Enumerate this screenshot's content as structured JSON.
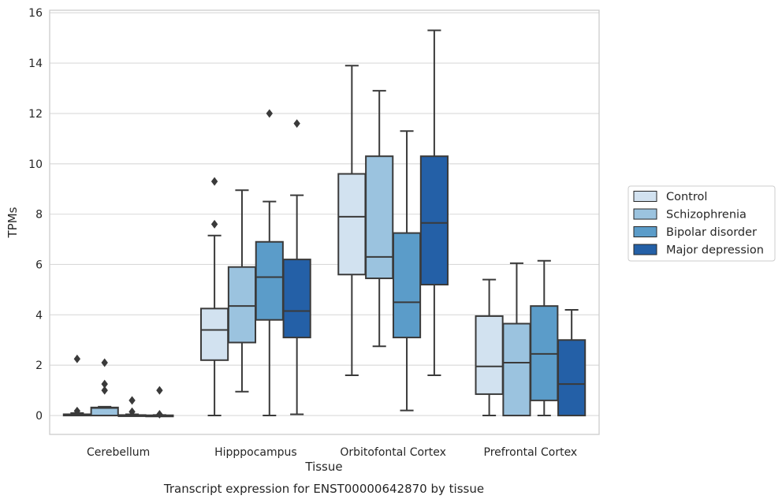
{
  "chart_data": {
    "type": "box",
    "caption": "Transcript expression for ENST00000642870 by tissue",
    "xlabel": "Tissue",
    "ylabel": "TPMs",
    "ylim": [
      -0.75,
      16.1
    ],
    "yticks": [
      0,
      2,
      4,
      6,
      8,
      10,
      12,
      14,
      16
    ],
    "grid": "horizontal",
    "legend_position": "right",
    "categories": [
      "Cerebellum",
      "Hipppocampus",
      "Orbitofontal Cortex",
      "Prefrontal Cortex"
    ],
    "series": [
      {
        "name": "Control",
        "color": "#d2e2f0",
        "boxes": [
          {
            "whislo": 0.0,
            "q1": 0.0,
            "med": 0.02,
            "q3": 0.05,
            "whishi": 0.1,
            "fliers": [
              0.18,
              2.25
            ]
          },
          {
            "whislo": 0.0,
            "q1": 2.2,
            "med": 3.4,
            "q3": 4.25,
            "whishi": 7.15,
            "fliers": [
              7.6,
              9.3
            ]
          },
          {
            "whislo": 1.6,
            "q1": 5.6,
            "med": 7.9,
            "q3": 9.6,
            "whishi": 13.9,
            "fliers": []
          },
          {
            "whislo": 0.0,
            "q1": 0.85,
            "med": 1.95,
            "q3": 3.95,
            "whishi": 5.4,
            "fliers": []
          }
        ]
      },
      {
        "name": "Schizophrenia",
        "color": "#9bc3df",
        "boxes": [
          {
            "whislo": 0.0,
            "q1": 0.0,
            "med": 0.3,
            "q3": 0.32,
            "whishi": 0.35,
            "fliers": [
              1.0,
              1.25,
              2.1
            ]
          },
          {
            "whislo": 0.95,
            "q1": 2.9,
            "med": 4.35,
            "q3": 5.9,
            "whishi": 8.95,
            "fliers": []
          },
          {
            "whislo": 2.75,
            "q1": 5.45,
            "med": 6.3,
            "q3": 10.3,
            "whishi": 12.9,
            "fliers": []
          },
          {
            "whislo": 0.0,
            "q1": 0.0,
            "med": 2.1,
            "q3": 3.65,
            "whishi": 6.05,
            "fliers": []
          }
        ]
      },
      {
        "name": "Bipolar disorder",
        "color": "#5b9cc9",
        "boxes": [
          {
            "whislo": 0.0,
            "q1": 0.0,
            "med": 0.0,
            "q3": 0.02,
            "whishi": 0.05,
            "fliers": [
              0.15,
              0.6
            ]
          },
          {
            "whislo": 0.0,
            "q1": 3.8,
            "med": 5.5,
            "q3": 6.9,
            "whishi": 8.5,
            "fliers": [
              12.0
            ]
          },
          {
            "whislo": 0.2,
            "q1": 3.1,
            "med": 4.5,
            "q3": 7.25,
            "whishi": 11.3,
            "fliers": []
          },
          {
            "whislo": 0.0,
            "q1": 0.6,
            "med": 2.45,
            "q3": 4.35,
            "whishi": 6.15,
            "fliers": []
          }
        ]
      },
      {
        "name": "Major depression",
        "color": "#2460a7",
        "boxes": [
          {
            "whislo": 0.0,
            "q1": 0.0,
            "med": 0.0,
            "q3": 0.01,
            "whishi": 0.02,
            "fliers": [
              0.05,
              1.0
            ]
          },
          {
            "whislo": 0.05,
            "q1": 3.1,
            "med": 4.15,
            "q3": 6.2,
            "whishi": 8.75,
            "fliers": [
              11.6
            ]
          },
          {
            "whislo": 1.6,
            "q1": 5.2,
            "med": 7.65,
            "q3": 10.3,
            "whishi": 15.3,
            "fliers": []
          },
          {
            "whislo": 0.0,
            "q1": 0.0,
            "med": 1.25,
            "q3": 3.0,
            "whishi": 4.2,
            "fliers": []
          }
        ]
      }
    ]
  }
}
